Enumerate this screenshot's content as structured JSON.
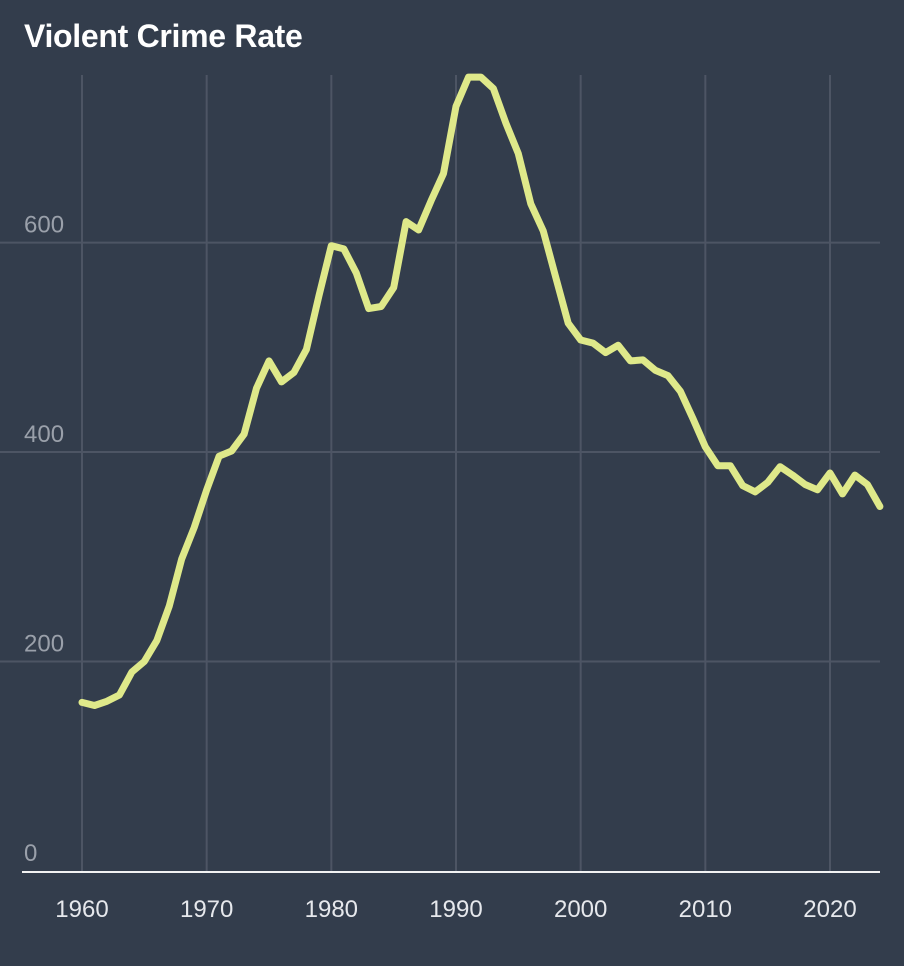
{
  "chart_data": {
    "type": "line",
    "title": "Violent Crime Rate",
    "xlabel": "",
    "ylabel": "",
    "xlim": [
      1960,
      2024
    ],
    "ylim": [
      0,
      760
    ],
    "x_ticks": [
      "1960",
      "1970",
      "1980",
      "1990",
      "2000",
      "2010",
      "2020"
    ],
    "y_ticks": [
      "0",
      "200",
      "400",
      "600"
    ],
    "grid": true,
    "line_color": "#dfe98a",
    "x": [
      1960,
      1961,
      1962,
      1963,
      1964,
      1965,
      1966,
      1967,
      1968,
      1969,
      1970,
      1971,
      1972,
      1973,
      1974,
      1975,
      1976,
      1977,
      1978,
      1979,
      1980,
      1981,
      1982,
      1983,
      1984,
      1985,
      1986,
      1987,
      1988,
      1989,
      1990,
      1991,
      1992,
      1993,
      1994,
      1995,
      1996,
      1997,
      1998,
      1999,
      2000,
      2001,
      2002,
      2003,
      2004,
      2005,
      2006,
      2007,
      2008,
      2009,
      2010,
      2011,
      2012,
      2013,
      2014,
      2015,
      2016,
      2017,
      2018,
      2019,
      2020,
      2021,
      2022,
      2023,
      2024
    ],
    "values": [
      161,
      158,
      162,
      168,
      190,
      200,
      220,
      253,
      298,
      328,
      364,
      396,
      401,
      417,
      461,
      487,
      467,
      476,
      498,
      549,
      597,
      594,
      571,
      537,
      539,
      557,
      620,
      612,
      640,
      666,
      730,
      758,
      758,
      747,
      714,
      685,
      637,
      611,
      567,
      523,
      507,
      504,
      495,
      502,
      487,
      488,
      478,
      473,
      458,
      432,
      405,
      387,
      387,
      368,
      362,
      371,
      386,
      378,
      369,
      364,
      380,
      360,
      378,
      369,
      348
    ]
  }
}
